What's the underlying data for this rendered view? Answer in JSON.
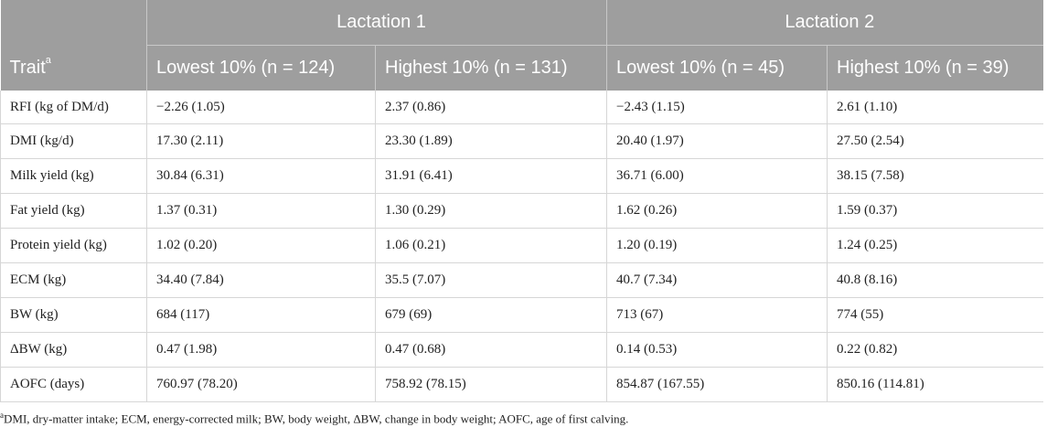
{
  "table": {
    "groups": [
      "Lactation 1",
      "Lactation 2"
    ],
    "trait_header": "Trait",
    "trait_header_marker": "a",
    "columns": [
      "Lowest 10% (n = 124)",
      "Highest 10% (n = 131)",
      "Lowest 10% (n = 45)",
      "Highest 10% (n = 39)"
    ],
    "rows": [
      [
        "RFI (kg of DM/d)",
        "−2.26 (1.05)",
        "2.37 (0.86)",
        "−2.43 (1.15)",
        "2.61 (1.10)"
      ],
      [
        "DMI (kg/d)",
        "17.30 (2.11)",
        "23.30 (1.89)",
        "20.40 (1.97)",
        "27.50 (2.54)"
      ],
      [
        "Milk yield (kg)",
        "30.84 (6.31)",
        "31.91 (6.41)",
        "36.71 (6.00)",
        "38.15 (7.58)"
      ],
      [
        "Fat yield (kg)",
        "1.37 (0.31)",
        "1.30 (0.29)",
        "1.62 (0.26)",
        "1.59 (0.37)"
      ],
      [
        "Protein yield (kg)",
        "1.02 (0.20)",
        "1.06 (0.21)",
        "1.20 (0.19)",
        "1.24 (0.25)"
      ],
      [
        "ECM (kg)",
        "34.40 (7.84)",
        "35.5 (7.07)",
        "40.7 (7.34)",
        "40.8 (8.16)"
      ],
      [
        "BW (kg)",
        "684 (117)",
        "679 (69)",
        "713 (67)",
        "774 (55)"
      ],
      [
        "ΔBW (kg)",
        "0.47 (1.98)",
        "0.47 (0.68)",
        "0.14 (0.53)",
        "0.22 (0.82)"
      ],
      [
        "AOFC (days)",
        "760.97 (78.20)",
        "758.92 (78.15)",
        "854.87 (167.55)",
        "850.16 (114.81)"
      ]
    ]
  },
  "footnote": {
    "marker": "a",
    "text": "DMI, dry-matter intake; ECM, energy-corrected milk; BW, body weight, ΔBW, change in body weight; AOFC, age of first calving."
  }
}
